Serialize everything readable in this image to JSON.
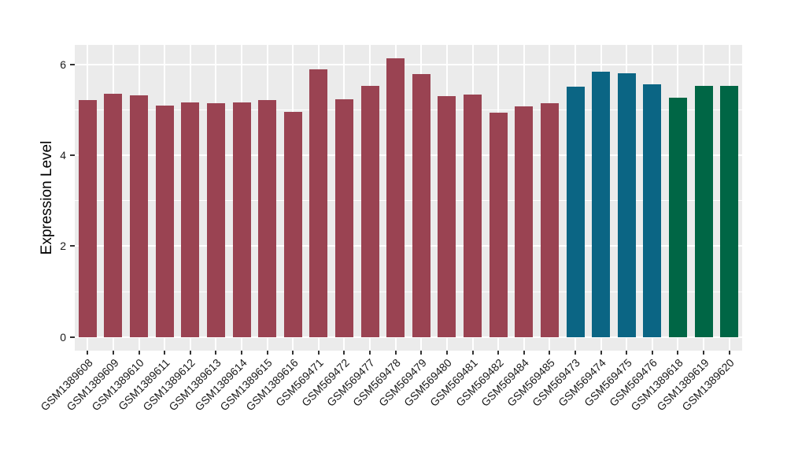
{
  "figure": {
    "background": "#FFFFFF"
  },
  "chart_data": {
    "type": "bar",
    "title": "",
    "xlabel": "",
    "ylabel": "Expression Level",
    "ylim": [
      0,
      6.43
    ],
    "ylim_expanded": [
      -0.3,
      6.43
    ],
    "yticks": [
      0,
      2,
      4,
      6
    ],
    "yticklabels": [
      "0",
      "2",
      "4",
      "6"
    ],
    "yticks_minor": [
      1,
      3,
      5
    ],
    "grid": true,
    "legend": "none",
    "x_tick_rotation_deg": 45,
    "categories": [
      "GSM1389608",
      "GSM1389609",
      "GSM1389610",
      "GSM1389611",
      "GSM1389612",
      "GSM1389613",
      "GSM1389614",
      "GSM1389615",
      "GSM1389616",
      "GSM569471",
      "GSM569472",
      "GSM569477",
      "GSM569478",
      "GSM569479",
      "GSM569480",
      "GSM569481",
      "GSM569482",
      "GSM569484",
      "GSM569485",
      "GSM569473",
      "GSM569474",
      "GSM569475",
      "GSM569476",
      "GSM1389618",
      "GSM1389619",
      "GSM1389620"
    ],
    "values": [
      5.21,
      5.35,
      5.32,
      5.09,
      5.16,
      5.15,
      5.17,
      5.21,
      4.95,
      5.89,
      5.24,
      5.52,
      6.14,
      5.79,
      5.31,
      5.33,
      4.93,
      5.07,
      5.15,
      5.51,
      5.84,
      5.81,
      5.56,
      5.27,
      5.52,
      5.52
    ],
    "bar_colors": [
      "#9A4352",
      "#9A4352",
      "#9A4352",
      "#9A4352",
      "#9A4352",
      "#9A4352",
      "#9A4352",
      "#9A4352",
      "#9A4352",
      "#9A4352",
      "#9A4352",
      "#9A4352",
      "#9A4352",
      "#9A4352",
      "#9A4352",
      "#9A4352",
      "#9A4352",
      "#9A4352",
      "#9A4352",
      "#0B6584",
      "#0B6584",
      "#0B6584",
      "#0B6584",
      "#006645",
      "#006645",
      "#006645"
    ],
    "palette": {
      "group_maroon": "#9A4352",
      "group_teal": "#0B6584",
      "group_green": "#006645"
    },
    "theme": {
      "panel_background": "#EBEBEB",
      "grid_color": "#FFFFFF",
      "tick_color": "#333333",
      "text_color": "#1A1A1A"
    }
  }
}
